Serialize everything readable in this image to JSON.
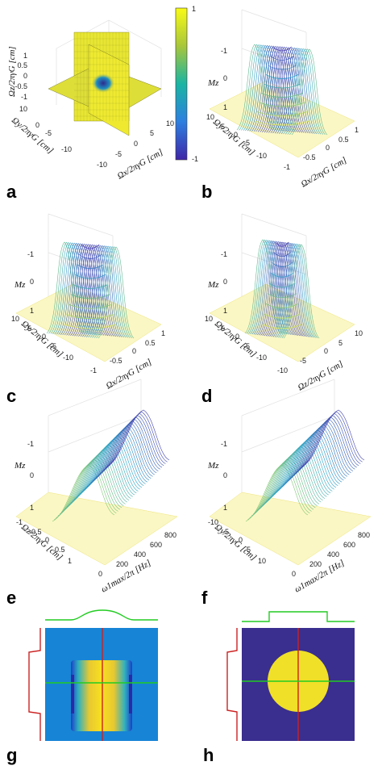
{
  "colorbar": {
    "max": "1",
    "min": "-1"
  },
  "colors": {
    "yellow": "#f5e62a",
    "blue": "#3a2e8f",
    "teal": "#1fa4b8",
    "bg_blue": "#1784d6",
    "green": "#22cc22",
    "red": "#cc2222"
  },
  "chart_data": [
    {
      "panel": "a",
      "type": "other",
      "description_type": "3d-slice",
      "zlabel": "Ωz/2πγG [cm]",
      "ylabel": "Ωy/2πγG [cm]",
      "xlabel": "Ωx/2πγG [cm]",
      "zticks": [
        "-1",
        "-0.5",
        "0",
        "0.5",
        "1"
      ],
      "yticks": [
        "-10",
        "-5",
        "0",
        "5",
        "10"
      ],
      "xticks": [
        "-10",
        "-5",
        "0",
        "5",
        "10"
      ],
      "zlim": [
        -1,
        1
      ],
      "ylim": [
        -10,
        10
      ],
      "xlim": [
        -10,
        10
      ]
    },
    {
      "panel": "b",
      "type": "surface",
      "zlabel": "Mz",
      "ylabel": "Ωy/2πγG [cm]",
      "xlabel": "Ωx/2πγG [cm]",
      "zticks": [
        "-1",
        "0",
        "1"
      ],
      "yticks": [
        "-10",
        "-5",
        "0",
        "5",
        "10"
      ],
      "xticks": [
        "-1",
        "-0.5",
        "0",
        "0.5",
        "1"
      ],
      "zlim": [
        -1,
        1
      ]
    },
    {
      "panel": "c",
      "type": "surface",
      "zlabel": "Mz",
      "ylabel": "Ωy/2πγG [cm]",
      "xlabel": "Ωx/2πγG [cm]",
      "zticks": [
        "-1",
        "0",
        "1"
      ],
      "yticks": [
        "-10",
        "-5",
        "0",
        "5",
        "10"
      ],
      "xticks": [
        "-1",
        "-0.5",
        "0",
        "0.5",
        "1"
      ],
      "zlim": [
        -1,
        1
      ]
    },
    {
      "panel": "d",
      "type": "surface",
      "zlabel": "Mz",
      "ylabel": "Ωy/2πγG [cm]",
      "xlabel": "Ωz/2πγG [cm]",
      "zticks": [
        "-1",
        "0",
        "1"
      ],
      "yticks": [
        "-10",
        "-5",
        "0",
        "5",
        "10"
      ],
      "xticks": [
        "-10",
        "-5",
        "0",
        "5",
        "10"
      ],
      "zlim": [
        -1,
        1
      ]
    },
    {
      "panel": "e",
      "type": "surface",
      "zlabel": "Mz",
      "ylabel": "Ωz/2πγG [cm]",
      "xlabel": "ω1max/2π [Hz]",
      "zticks": [
        "-1",
        "0",
        "1"
      ],
      "yticks": [
        "-1",
        "-0.5",
        "0",
        "0.5",
        "1"
      ],
      "xticks": [
        "0",
        "200",
        "400",
        "600",
        "800"
      ],
      "zlim": [
        -1,
        1
      ]
    },
    {
      "panel": "f",
      "type": "surface",
      "zlabel": "Mz",
      "ylabel": "Ωy/2πγG [cm]",
      "xlabel": "ω1max/2π [Hz]",
      "zticks": [
        "-1",
        "0",
        "1"
      ],
      "yticks": [
        "-10",
        "-5",
        "0",
        "5",
        "10"
      ],
      "xticks": [
        "0",
        "200",
        "400",
        "600",
        "800"
      ],
      "zlim": [
        -1,
        1
      ]
    },
    {
      "panel": "g",
      "type": "heatmap"
    },
    {
      "panel": "h",
      "type": "heatmap"
    }
  ],
  "panels": {
    "a": {
      "letter": "a"
    },
    "b": {
      "letter": "b"
    },
    "c": {
      "letter": "c"
    },
    "d": {
      "letter": "d"
    },
    "e": {
      "letter": "e"
    },
    "f": {
      "letter": "f"
    },
    "g": {
      "letter": "g"
    },
    "h": {
      "letter": "h"
    }
  }
}
